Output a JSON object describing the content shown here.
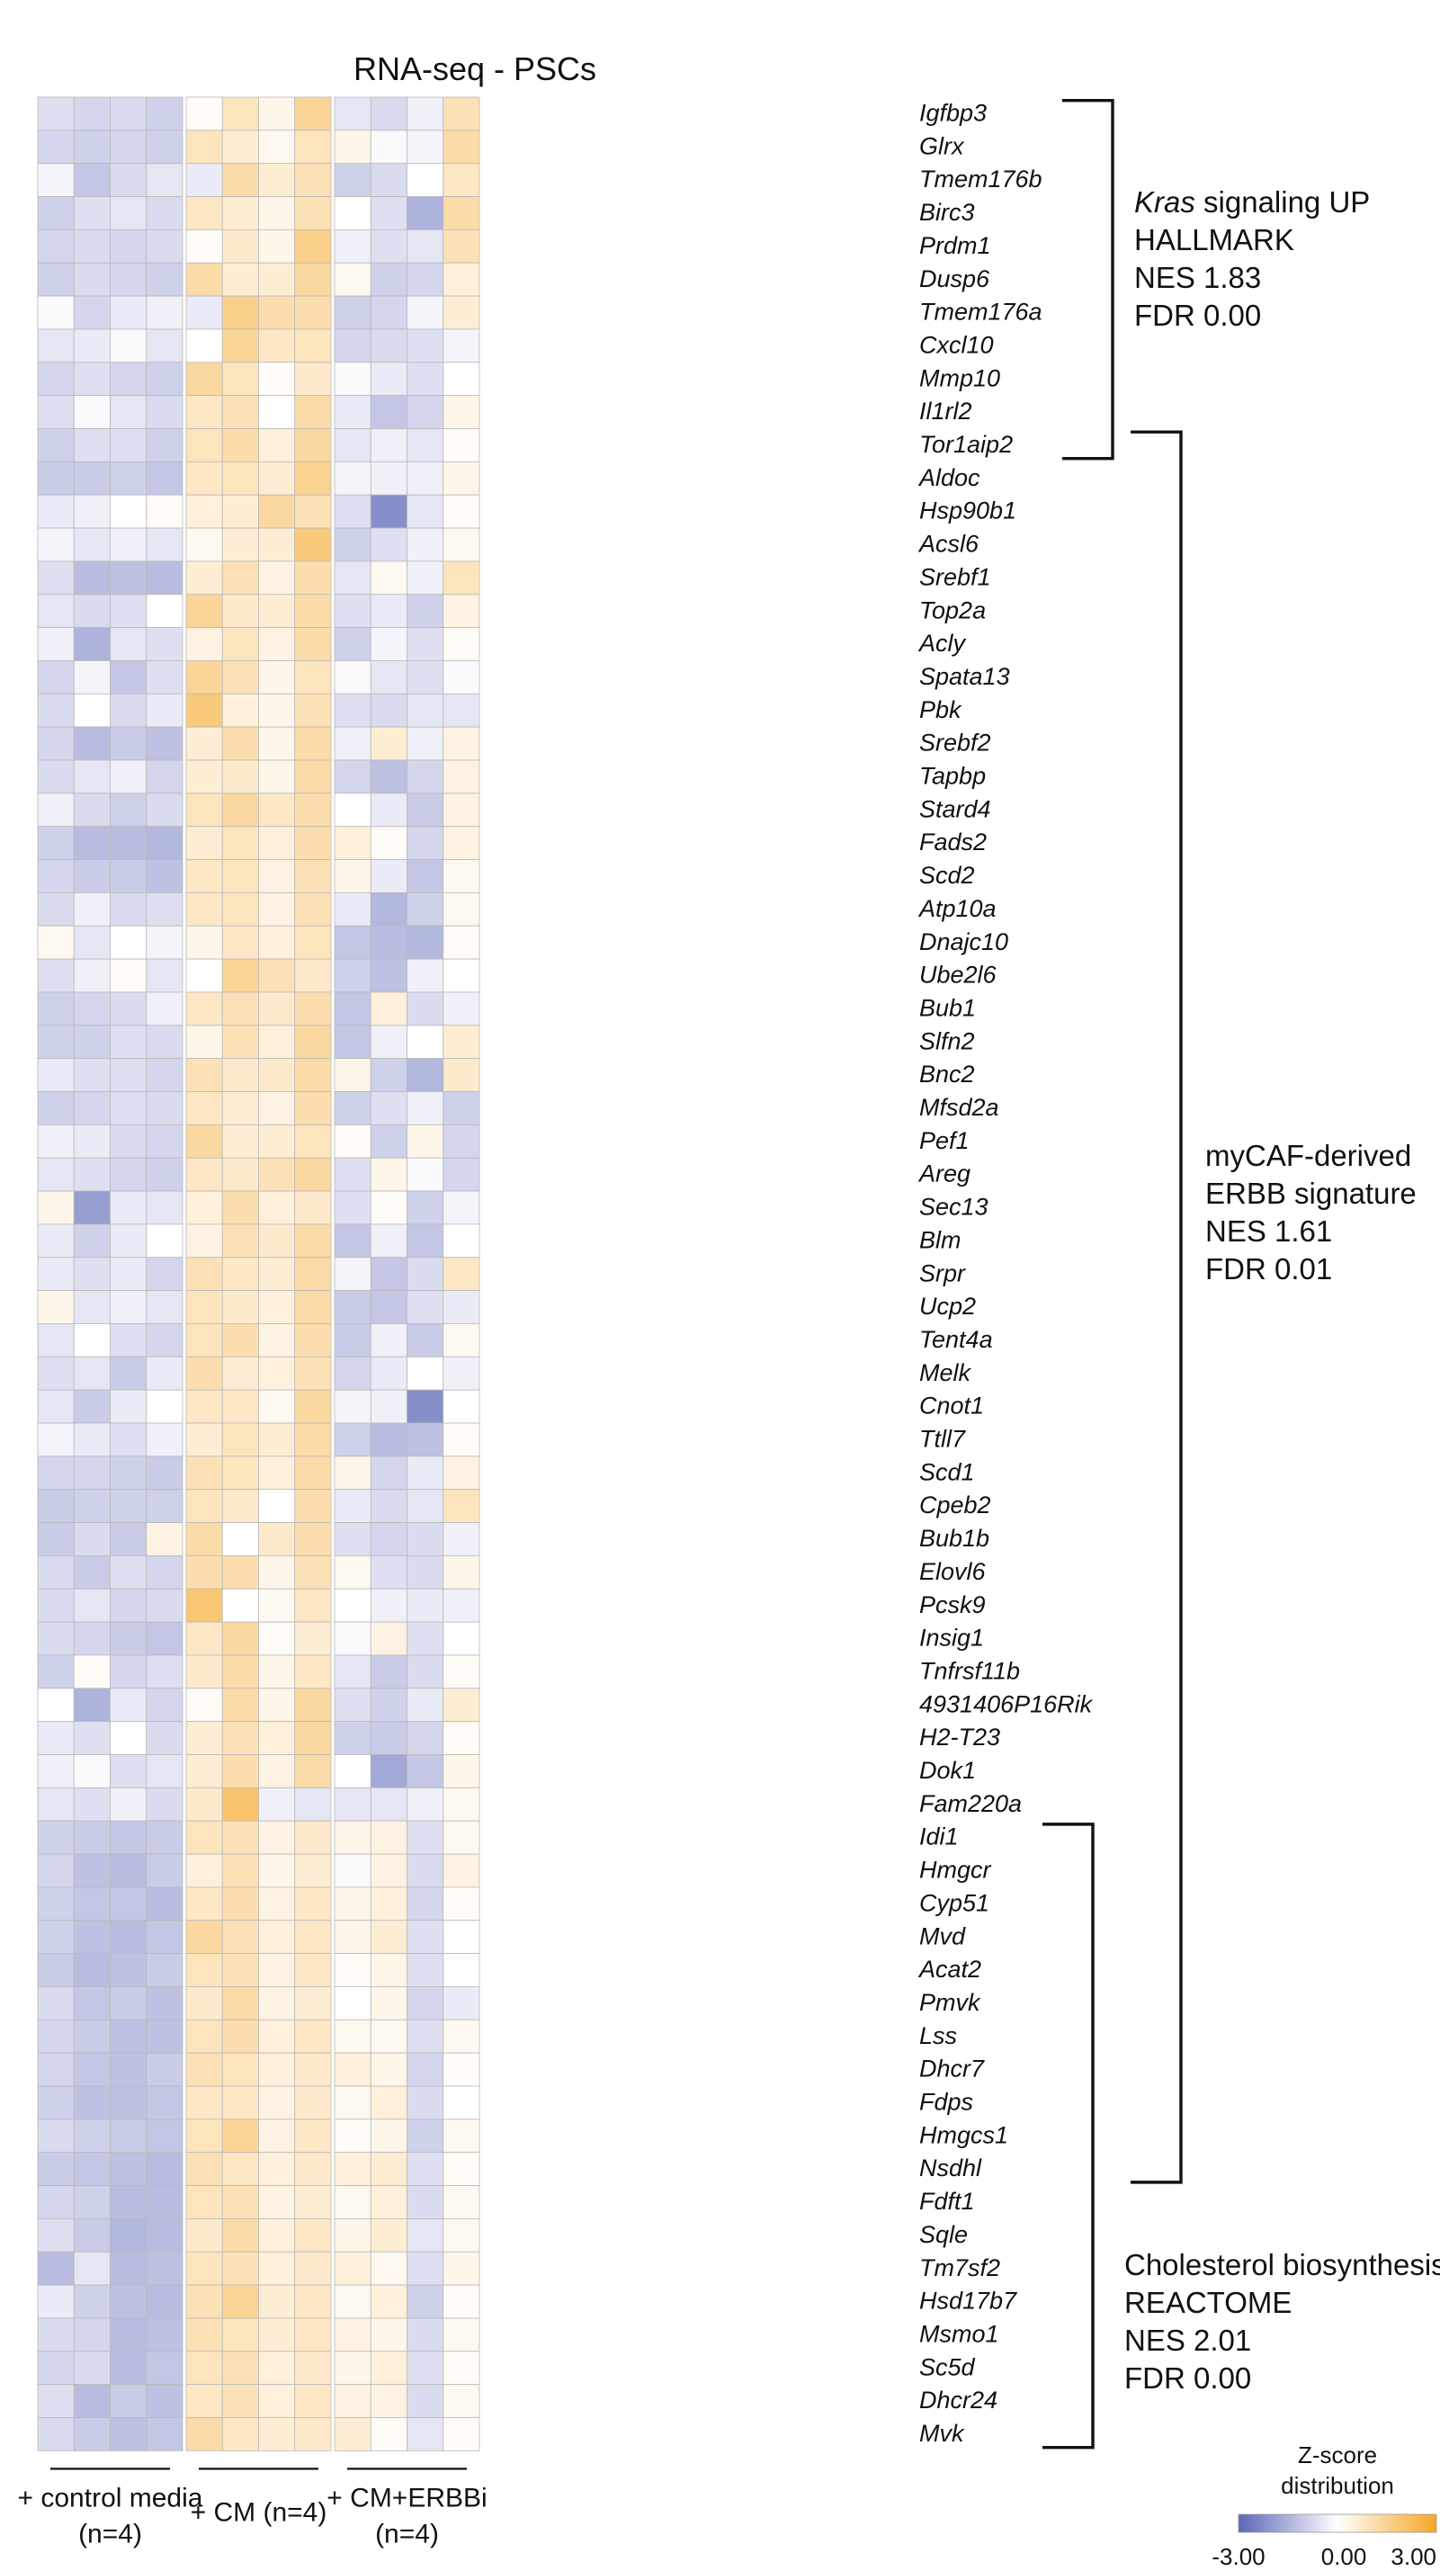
{
  "chart_data": {
    "type": "heatmap",
    "title": "RNA-seq - PSCs",
    "genes": [
      "Igfbp3",
      "Glrx",
      "Tmem176b",
      "Birc3",
      "Prdm1",
      "Dusp6",
      "Tmem176a",
      "Cxcl10",
      "Mmp10",
      "Il1rl2",
      "Tor1aip2",
      "Aldoc",
      "Hsp90b1",
      "Acsl6",
      "Srebf1",
      "Top2a",
      "Acly",
      "Spata13",
      "Pbk",
      "Srebf2",
      "Tapbp",
      "Stard4",
      "Fads2",
      "Scd2",
      "Atp10a",
      "Dnajc10",
      "Ube2l6",
      "Bub1",
      "Slfn2",
      "Bnc2",
      "Mfsd2a",
      "Pef1",
      "Areg",
      "Sec13",
      "Blm",
      "Srpr",
      "Ucp2",
      "Tent4a",
      "Melk",
      "Cnot1",
      "Ttll7",
      "Scd1",
      "Cpeb2",
      "Bub1b",
      "Elovl6",
      "Pcsk9",
      "Insig1",
      "Tnfrsf11b",
      "4931406P16Rik",
      "H2-T23",
      "Dok1",
      "Fam220a",
      "Idi1",
      "Hmgcr",
      "Cyp51",
      "Mvd",
      "Acat2",
      "Pmvk",
      "Lss",
      "Dhcr7",
      "Fdps",
      "Hmgcs1",
      "Nsdhl",
      "Fdft1",
      "Sqle",
      "Tm7sf2",
      "Hsd17b7",
      "Msmo1",
      "Sc5d",
      "Dhcr24",
      "Mvk"
    ],
    "groups": [
      {
        "lines": [
          "+ control media",
          "(n=4)"
        ],
        "n_columns": 4
      },
      {
        "lines": [
          "+ CM (n=4)"
        ],
        "n_columns": 4
      },
      {
        "lines": [
          "+ CM+ERBBi",
          "(n=4)"
        ],
        "n_columns": 4
      }
    ],
    "color_scale": {
      "title_lines": [
        "Z-score",
        "distribution"
      ],
      "min_label": "-3.00",
      "mid_label": "0.00",
      "max_label": "3.00",
      "min": -3,
      "max": 3,
      "colors": [
        "#5b66b8",
        "#ffffff",
        "#f6a623"
      ]
    },
    "gene_sets": [
      {
        "lines": [
          {
            "italic": "Kras",
            "text": " signaling UP"
          },
          {
            "text": "HALLMARK"
          },
          {
            "text": "NES 1.83"
          },
          {
            "text": "FDR 0.00"
          }
        ],
        "first_gene": 0,
        "last_gene": 10
      },
      {
        "lines": [
          {
            "text": "myCAF-derived"
          },
          {
            "text": "ERBB signature"
          },
          {
            "text": "NES 1.61"
          },
          {
            "text": "FDR 0.01"
          }
        ],
        "first_gene": 10,
        "last_gene": 62
      },
      {
        "lines": [
          {
            "text": "Cholesterol biosynthesis"
          },
          {
            "text": "REACTOME"
          },
          {
            "text": "NES 2.01"
          },
          {
            "text": "FDR 0.00"
          }
        ],
        "first_gene": 52,
        "last_gene": 70
      }
    ],
    "values": [
      [
        -0.6,
        -0.8,
        -0.7,
        -0.9,
        0.1,
        0.9,
        0.3,
        1.4,
        -0.5,
        -0.7,
        -0.3,
        1.0
      ],
      [
        -0.8,
        -0.9,
        -0.8,
        -0.9,
        0.9,
        0.6,
        0.2,
        0.9,
        0.3,
        -0.1,
        -0.2,
        1.2
      ],
      [
        -0.2,
        -1.1,
        -0.7,
        -0.5,
        -0.4,
        1.2,
        0.6,
        1.0,
        -0.9,
        -0.7,
        0.0,
        0.8
      ],
      [
        -0.9,
        -0.6,
        -0.5,
        -0.7,
        0.8,
        0.6,
        0.3,
        1.0,
        0.0,
        -0.6,
        -1.5,
        1.2
      ],
      [
        -0.8,
        -0.7,
        -0.8,
        -0.7,
        0.1,
        0.7,
        0.3,
        1.6,
        -0.3,
        -0.6,
        -0.5,
        1.0
      ],
      [
        -0.9,
        -0.7,
        -0.8,
        -0.9,
        1.2,
        0.6,
        0.6,
        1.3,
        0.2,
        -0.9,
        -0.8,
        0.5
      ],
      [
        -0.1,
        -0.8,
        -0.4,
        -0.3,
        -0.4,
        1.6,
        1.1,
        1.1,
        -0.9,
        -0.8,
        -0.2,
        0.6
      ],
      [
        -0.5,
        -0.4,
        -0.1,
        -0.5,
        0.0,
        1.4,
        0.8,
        0.9,
        -0.8,
        -0.7,
        -0.6,
        -0.2
      ],
      [
        -0.8,
        -0.6,
        -0.8,
        -0.9,
        1.3,
        0.9,
        0.1,
        0.7,
        -0.1,
        -0.4,
        -0.6,
        0.0
      ],
      [
        -0.6,
        -0.1,
        -0.5,
        -0.7,
        0.8,
        1.0,
        0.0,
        1.2,
        -0.4,
        -1.1,
        -0.8,
        0.3
      ],
      [
        -0.9,
        -0.6,
        -0.6,
        -0.9,
        0.9,
        1.2,
        0.5,
        1.3,
        -0.5,
        -0.3,
        -0.5,
        0.1
      ],
      [
        -1.0,
        -1.0,
        -0.9,
        -1.1,
        0.8,
        0.9,
        0.6,
        1.5,
        -0.2,
        -0.3,
        -0.3,
        0.3
      ],
      [
        -0.4,
        -0.3,
        0.0,
        0.1,
        0.5,
        0.6,
        1.3,
        1.0,
        -0.6,
        -2.2,
        -0.5,
        0.1
      ],
      [
        -0.2,
        -0.5,
        -0.3,
        -0.5,
        0.2,
        0.6,
        0.6,
        1.8,
        -0.9,
        -0.6,
        -0.3,
        0.2
      ],
      [
        -0.6,
        -1.3,
        -1.2,
        -1.3,
        0.6,
        1.0,
        0.4,
        1.1,
        -0.5,
        0.2,
        -0.3,
        0.9
      ],
      [
        -0.5,
        -0.7,
        -0.6,
        0.0,
        1.4,
        0.7,
        0.6,
        1.2,
        -0.6,
        -0.4,
        -0.9,
        0.4
      ],
      [
        -0.3,
        -1.5,
        -0.5,
        -0.6,
        0.4,
        0.9,
        0.4,
        1.2,
        -0.9,
        -0.2,
        -0.6,
        0.1
      ],
      [
        -0.8,
        -0.2,
        -1.1,
        -0.6,
        1.4,
        1.0,
        0.3,
        0.9,
        -0.1,
        -0.5,
        -0.6,
        -0.1
      ],
      [
        -0.7,
        0.0,
        -0.7,
        -0.4,
        1.8,
        0.5,
        0.3,
        1.0,
        -0.6,
        -0.7,
        -0.5,
        -0.5
      ],
      [
        -0.8,
        -1.3,
        -1.0,
        -1.2,
        0.6,
        1.1,
        0.3,
        1.2,
        -0.3,
        0.6,
        -0.3,
        0.4
      ],
      [
        -0.7,
        -0.5,
        -0.3,
        -0.8,
        0.6,
        0.7,
        0.3,
        1.2,
        -0.8,
        -1.2,
        -0.8,
        0.4
      ],
      [
        -0.3,
        -0.7,
        -0.9,
        -0.7,
        0.9,
        1.3,
        0.8,
        1.1,
        0.0,
        -0.4,
        -1.0,
        0.4
      ],
      [
        -0.9,
        -1.3,
        -1.3,
        -1.4,
        0.6,
        0.9,
        0.5,
        1.1,
        0.5,
        0.1,
        -0.8,
        0.4
      ],
      [
        -0.8,
        -1.0,
        -1.0,
        -1.2,
        0.8,
        0.9,
        0.4,
        1.0,
        0.3,
        -0.4,
        -1.1,
        0.2
      ],
      [
        -0.7,
        -0.3,
        -0.7,
        -0.6,
        0.8,
        0.9,
        0.4,
        1.0,
        -0.4,
        -1.4,
        -0.9,
        0.2
      ],
      [
        0.2,
        -0.5,
        0.0,
        -0.2,
        0.3,
        0.8,
        0.5,
        0.9,
        -1.1,
        -1.3,
        -1.4,
        0.1
      ],
      [
        -0.6,
        -0.3,
        0.1,
        -0.5,
        0.0,
        1.4,
        1.0,
        0.7,
        -0.9,
        -1.2,
        -0.3,
        0.0
      ],
      [
        -0.9,
        -0.8,
        -0.7,
        -0.3,
        0.8,
        1.0,
        0.7,
        1.1,
        -1.1,
        0.5,
        -0.7,
        -0.3
      ],
      [
        -0.9,
        -0.9,
        -0.6,
        -0.7,
        0.3,
        1.0,
        0.5,
        1.3,
        -1.1,
        -0.3,
        0.0,
        0.6
      ],
      [
        -0.4,
        -0.6,
        -0.6,
        -0.8,
        1.0,
        0.7,
        0.7,
        1.2,
        0.3,
        -0.9,
        -1.4,
        0.7
      ],
      [
        -0.9,
        -0.8,
        -0.6,
        -0.7,
        0.8,
        0.6,
        0.4,
        1.1,
        -0.9,
        -0.6,
        -0.3,
        -0.9
      ],
      [
        -0.3,
        -0.4,
        -0.7,
        -0.8,
        1.3,
        0.6,
        0.6,
        0.9,
        0.1,
        -0.9,
        0.3,
        -0.8
      ],
      [
        -0.5,
        -0.6,
        -0.8,
        -0.9,
        0.8,
        0.7,
        1.0,
        1.3,
        -0.6,
        0.3,
        -0.1,
        -0.8
      ],
      [
        0.3,
        -1.9,
        -0.4,
        -0.5,
        0.5,
        1.1,
        0.5,
        0.7,
        -0.6,
        0.1,
        -0.9,
        -0.2
      ],
      [
        -0.4,
        -0.9,
        -0.4,
        0.0,
        0.4,
        1.0,
        0.7,
        1.2,
        -1.1,
        -0.3,
        -1.1,
        0.0
      ],
      [
        -0.4,
        -0.6,
        -0.4,
        -0.8,
        1.0,
        0.8,
        0.6,
        1.2,
        -0.2,
        -1.1,
        -0.7,
        0.8
      ],
      [
        0.3,
        -0.5,
        -0.3,
        -0.5,
        0.9,
        0.7,
        0.5,
        1.2,
        -1.0,
        -1.1,
        -0.6,
        -0.4
      ],
      [
        -0.5,
        0.0,
        -0.6,
        -0.8,
        0.9,
        1.1,
        0.4,
        1.1,
        -1.0,
        -0.3,
        -1.0,
        0.2
      ],
      [
        -0.6,
        -0.5,
        -1.0,
        -0.4,
        1.1,
        0.6,
        0.5,
        1.0,
        -0.8,
        -0.4,
        0.0,
        -0.3
      ],
      [
        -0.5,
        -1.0,
        -0.4,
        0.0,
        0.8,
        0.8,
        0.2,
        1.3,
        -0.2,
        -0.3,
        -2.2,
        0.0
      ],
      [
        -0.2,
        -0.4,
        -0.6,
        -0.3,
        0.6,
        0.9,
        0.6,
        1.2,
        -0.9,
        -1.3,
        -1.2,
        0.1
      ],
      [
        -0.8,
        -0.8,
        -0.9,
        -1.0,
        1.0,
        0.9,
        0.5,
        1.2,
        0.3,
        -0.8,
        -0.4,
        0.4
      ],
      [
        -1.0,
        -0.9,
        -0.9,
        -0.9,
        0.9,
        0.7,
        0.0,
        1.1,
        -0.4,
        -0.7,
        -0.5,
        0.9
      ],
      [
        -1.0,
        -0.7,
        -1.0,
        0.4,
        1.2,
        0.0,
        0.7,
        1.1,
        -0.6,
        -0.8,
        -0.7,
        -0.3
      ],
      [
        -0.7,
        -1.0,
        -0.6,
        -0.8,
        1.1,
        1.1,
        0.3,
        1.0,
        0.2,
        -0.6,
        -0.7,
        0.3
      ],
      [
        -0.7,
        -0.5,
        -0.8,
        -0.7,
        1.9,
        0.0,
        0.2,
        0.8,
        0.0,
        -0.3,
        -0.4,
        -0.3
      ],
      [
        -0.7,
        -0.8,
        -1.0,
        -1.1,
        0.8,
        1.3,
        0.1,
        0.6,
        -0.1,
        0.4,
        -0.6,
        0.0
      ],
      [
        -0.9,
        0.1,
        -0.8,
        -0.6,
        0.7,
        1.2,
        0.3,
        0.8,
        -0.5,
        -1.0,
        -0.7,
        0.1
      ],
      [
        0.0,
        -1.5,
        -0.4,
        -0.8,
        0.1,
        1.2,
        0.3,
        1.3,
        -0.6,
        -0.9,
        -0.4,
        0.6
      ],
      [
        -0.4,
        -0.6,
        0.0,
        -0.7,
        0.6,
        1.0,
        0.5,
        1.3,
        -0.9,
        -1.0,
        -0.8,
        0.1
      ],
      [
        -0.3,
        -0.1,
        -0.6,
        -0.5,
        0.6,
        1.1,
        0.4,
        1.2,
        0.0,
        -1.7,
        -1.1,
        0.3
      ],
      [
        -0.5,
        -0.6,
        -0.3,
        -0.7,
        0.7,
        2.0,
        -0.3,
        -0.5,
        -0.5,
        -0.5,
        -0.3,
        0.2
      ],
      [
        -0.9,
        -1.0,
        -1.1,
        -1.0,
        0.9,
        1.0,
        0.4,
        0.7,
        0.3,
        0.4,
        -0.6,
        0.2
      ],
      [
        -0.8,
        -1.2,
        -1.3,
        -1.0,
        0.5,
        1.0,
        0.3,
        0.6,
        -0.1,
        0.4,
        -0.7,
        0.4
      ],
      [
        -0.9,
        -1.1,
        -1.1,
        -1.3,
        0.8,
        1.1,
        0.4,
        0.8,
        0.3,
        0.5,
        -0.8,
        0.1
      ],
      [
        -0.9,
        -1.2,
        -1.3,
        -1.1,
        1.3,
        1.0,
        0.5,
        0.8,
        0.3,
        0.6,
        -0.6,
        0.0
      ],
      [
        -1.0,
        -1.3,
        -1.2,
        -1.0,
        0.9,
        1.0,
        0.4,
        0.8,
        0.1,
        0.3,
        -0.6,
        0.0
      ],
      [
        -0.7,
        -1.1,
        -1.0,
        -1.2,
        0.7,
        1.2,
        0.4,
        0.6,
        0.0,
        0.3,
        -0.8,
        -0.4
      ],
      [
        -0.8,
        -1.0,
        -1.2,
        -1.2,
        0.9,
        1.1,
        0.5,
        0.8,
        0.2,
        0.2,
        -0.6,
        0.2
      ],
      [
        -0.8,
        -1.1,
        -1.2,
        -1.0,
        1.0,
        0.9,
        0.5,
        0.7,
        0.5,
        0.3,
        -0.8,
        0.1
      ],
      [
        -0.9,
        -1.2,
        -1.2,
        -1.1,
        0.8,
        0.8,
        0.4,
        0.7,
        0.2,
        0.5,
        -0.7,
        0.0
      ],
      [
        -0.7,
        -0.9,
        -1.0,
        -1.1,
        0.9,
        1.4,
        0.4,
        0.8,
        0.1,
        0.3,
        -0.9,
        0.2
      ],
      [
        -1.0,
        -1.1,
        -1.2,
        -1.3,
        1.0,
        0.8,
        0.5,
        0.7,
        0.5,
        0.6,
        -0.6,
        0.1
      ],
      [
        -0.8,
        -0.9,
        -1.3,
        -1.3,
        0.9,
        1.0,
        0.4,
        0.6,
        0.2,
        0.5,
        -0.7,
        0.2
      ],
      [
        -0.6,
        -1.0,
        -1.4,
        -1.3,
        0.7,
        1.2,
        0.5,
        0.8,
        0.3,
        0.6,
        -0.5,
        0.2
      ],
      [
        -1.3,
        -0.5,
        -1.3,
        -1.2,
        0.9,
        1.0,
        0.5,
        0.7,
        0.5,
        0.2,
        -0.6,
        0.3
      ],
      [
        -0.4,
        -0.9,
        -1.2,
        -1.3,
        1.0,
        1.4,
        0.6,
        0.8,
        0.2,
        0.5,
        -0.9,
        0.1
      ],
      [
        -0.7,
        -0.8,
        -1.3,
        -1.2,
        1.0,
        0.9,
        0.6,
        0.8,
        0.4,
        0.3,
        -0.7,
        0.2
      ],
      [
        -0.8,
        -0.7,
        -1.3,
        -1.1,
        0.9,
        1.0,
        0.5,
        0.7,
        0.3,
        0.5,
        -0.6,
        0.1
      ],
      [
        -0.6,
        -1.3,
        -1.0,
        -1.2,
        0.8,
        1.0,
        0.5,
        0.8,
        0.4,
        0.4,
        -0.7,
        0.2
      ],
      [
        -0.7,
        -1.0,
        -1.2,
        -1.1,
        1.2,
        0.8,
        0.6,
        0.7,
        0.6,
        0.1,
        -0.5,
        0.1
      ]
    ]
  }
}
